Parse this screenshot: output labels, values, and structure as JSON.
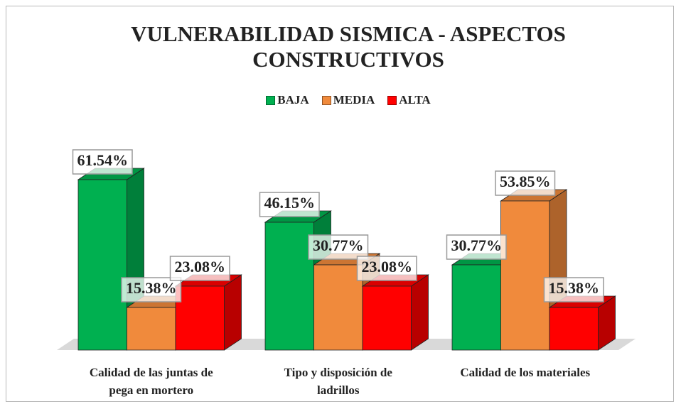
{
  "chart_data": {
    "type": "bar3d",
    "title": "VULNERABILIDAD SISMICA - ASPECTOS CONSTRUCTIVOS",
    "categories": [
      "Calidad de las juntas de pega en mortero",
      "Tipo y disposición de ladrillos",
      "Calidad de los materiales"
    ],
    "series": [
      {
        "name": "BAJA",
        "color": "#00b050",
        "values": [
          61.54,
          46.15,
          30.77
        ],
        "value_labels": [
          "61.54%",
          "46.15%",
          "30.77%"
        ]
      },
      {
        "name": "MEDIA",
        "color": "#f08a3c",
        "values": [
          15.38,
          30.77,
          53.85
        ],
        "value_labels": [
          "15.38%",
          "30.77%",
          "53.85%"
        ]
      },
      {
        "name": "ALTA",
        "color": "#ff0000",
        "values": [
          23.08,
          23.08,
          15.38
        ],
        "value_labels": [
          "23.08%",
          "23.08%",
          "15.38%"
        ]
      }
    ],
    "legend": "top"
  }
}
